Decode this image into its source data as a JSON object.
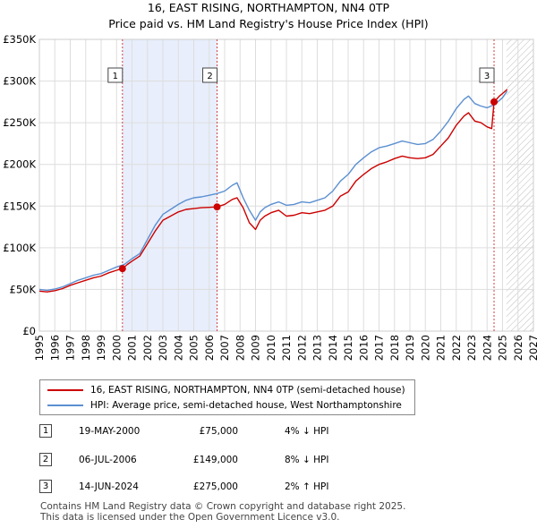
{
  "title": "16, EAST RISING, NORTHAMPTON, NN4 0TP",
  "subtitle": "Price paid vs. HM Land Registry's House Price Index (HPI)",
  "colors": {
    "price_line": "#cc0000",
    "hpi_line": "#5b8fd1",
    "shade": "#e8eefb",
    "marker_line": "#d04040",
    "hatch": "#bbbbbb"
  },
  "chart_data": {
    "type": "line",
    "ylim": [
      0,
      350000
    ],
    "xlim": [
      1995,
      2027
    ],
    "y_ticks": [
      0,
      50000,
      100000,
      150000,
      200000,
      250000,
      300000,
      350000
    ],
    "y_tick_labels": [
      "£0",
      "£50K",
      "£100K",
      "£150K",
      "£200K",
      "£250K",
      "£300K",
      "£350K"
    ],
    "x_ticks": [
      1995,
      1996,
      1997,
      1998,
      1999,
      2000,
      2001,
      2002,
      2003,
      2004,
      2005,
      2006,
      2007,
      2008,
      2009,
      2010,
      2011,
      2012,
      2013,
      2014,
      2015,
      2016,
      2017,
      2018,
      2019,
      2020,
      2021,
      2022,
      2023,
      2024,
      2025,
      2026,
      2027
    ],
    "x_tick_labels": [
      "1995",
      "1996",
      "1997",
      "1998",
      "1999",
      "2000",
      "2001",
      "2002",
      "2003",
      "2004",
      "2005",
      "2006",
      "2007",
      "2008",
      "2009",
      "2010",
      "2011",
      "2012",
      "2013",
      "2014",
      "2015",
      "2016",
      "2017",
      "2018",
      "2019",
      "2020",
      "2021",
      "2022",
      "2023",
      "2024",
      "2025",
      "2026",
      "2027"
    ],
    "shaded_range": [
      2000.38,
      2006.51
    ],
    "hatched_from": 2025.25,
    "series": [
      {
        "name": "16, EAST RISING, NORTHAMPTON, NN4 0TP (semi-detached house)",
        "x": [
          1995.0,
          1995.5,
          1996.0,
          1996.5,
          1997.0,
          1997.5,
          1998.0,
          1998.5,
          1999.0,
          1999.5,
          2000.0,
          2000.38,
          2000.7,
          2001.0,
          2001.5,
          2002.0,
          2002.5,
          2003.0,
          2003.5,
          2004.0,
          2004.5,
          2005.0,
          2005.5,
          2006.0,
          2006.51,
          2007.0,
          2007.5,
          2007.8,
          2008.2,
          2008.6,
          2009.0,
          2009.3,
          2009.6,
          2010.0,
          2010.5,
          2011.0,
          2011.5,
          2012.0,
          2012.5,
          2013.0,
          2013.5,
          2014.0,
          2014.5,
          2015.0,
          2015.5,
          2016.0,
          2016.5,
          2017.0,
          2017.5,
          2018.0,
          2018.5,
          2019.0,
          2019.5,
          2020.0,
          2020.5,
          2021.0,
          2021.5,
          2022.0,
          2022.5,
          2022.8,
          2023.2,
          2023.6,
          2024.0,
          2024.3,
          2024.45,
          2024.6,
          2024.8,
          2025.0,
          2025.3
        ],
        "values": [
          48000,
          47000,
          48500,
          51000,
          55000,
          58000,
          61000,
          64000,
          66000,
          70000,
          73000,
          75000,
          80000,
          84000,
          90000,
          105000,
          120000,
          133000,
          138000,
          143000,
          146000,
          147000,
          148000,
          148500,
          149000,
          152000,
          158000,
          160000,
          148000,
          130000,
          122000,
          133000,
          138000,
          142000,
          145000,
          138000,
          139000,
          142000,
          141000,
          143000,
          145000,
          150000,
          162000,
          167000,
          180000,
          188000,
          195000,
          200000,
          203000,
          207000,
          210000,
          208000,
          207000,
          208000,
          212000,
          222000,
          232000,
          247000,
          258000,
          262000,
          252000,
          250000,
          245000,
          243000,
          275000,
          278000,
          282000,
          285000,
          290000
        ]
      },
      {
        "name": "HPI: Average price, semi-detached house, West Northamptonshire",
        "x": [
          1995.0,
          1995.5,
          1996.0,
          1996.5,
          1997.0,
          1997.5,
          1998.0,
          1998.5,
          1999.0,
          1999.5,
          2000.0,
          2000.5,
          2001.0,
          2001.5,
          2002.0,
          2002.5,
          2003.0,
          2003.5,
          2004.0,
          2004.5,
          2005.0,
          2005.5,
          2006.0,
          2006.5,
          2007.0,
          2007.5,
          2007.8,
          2008.2,
          2008.6,
          2009.0,
          2009.3,
          2009.6,
          2010.0,
          2010.5,
          2011.0,
          2011.5,
          2012.0,
          2012.5,
          2013.0,
          2013.5,
          2014.0,
          2014.5,
          2015.0,
          2015.5,
          2016.0,
          2016.5,
          2017.0,
          2017.5,
          2018.0,
          2018.5,
          2019.0,
          2019.5,
          2020.0,
          2020.5,
          2021.0,
          2021.5,
          2022.0,
          2022.5,
          2022.8,
          2023.2,
          2023.6,
          2024.0,
          2024.5,
          2025.0,
          2025.3
        ],
        "values": [
          50000,
          49000,
          50500,
          53000,
          57000,
          61000,
          64000,
          67000,
          69000,
          73000,
          77000,
          80000,
          87000,
          93000,
          110000,
          127000,
          140000,
          146000,
          152000,
          157000,
          160000,
          161000,
          163000,
          165000,
          168000,
          175000,
          178000,
          160000,
          145000,
          133000,
          143000,
          148000,
          152000,
          155000,
          151000,
          152000,
          155000,
          154000,
          157000,
          160000,
          168000,
          180000,
          188000,
          200000,
          208000,
          215000,
          220000,
          222000,
          225000,
          228000,
          226000,
          224000,
          225000,
          230000,
          240000,
          252000,
          267000,
          278000,
          282000,
          273000,
          270000,
          268000,
          272000,
          280000,
          288000
        ]
      }
    ],
    "sale_markers": [
      {
        "label": "1",
        "x": 2000.38,
        "value": 75000
      },
      {
        "label": "2",
        "x": 2006.51,
        "value": 149000
      },
      {
        "label": "3",
        "x": 2024.45,
        "value": 275000
      }
    ]
  },
  "legend": {
    "price_label": "16, EAST RISING, NORTHAMPTON, NN4 0TP (semi-detached house)",
    "hpi_label": "HPI: Average price, semi-detached house, West Northamptonshire"
  },
  "sales": [
    {
      "num": "1",
      "date": "19-MAY-2000",
      "price": "£75,000",
      "hpi": "4% ↓ HPI"
    },
    {
      "num": "2",
      "date": "06-JUL-2006",
      "price": "£149,000",
      "hpi": "8% ↓ HPI"
    },
    {
      "num": "3",
      "date": "14-JUN-2024",
      "price": "£275,000",
      "hpi": "2% ↑ HPI"
    }
  ],
  "footer": {
    "line1": "Contains HM Land Registry data © Crown copyright and database right 2025.",
    "line2": "This data is licensed under the Open Government Licence v3.0."
  }
}
